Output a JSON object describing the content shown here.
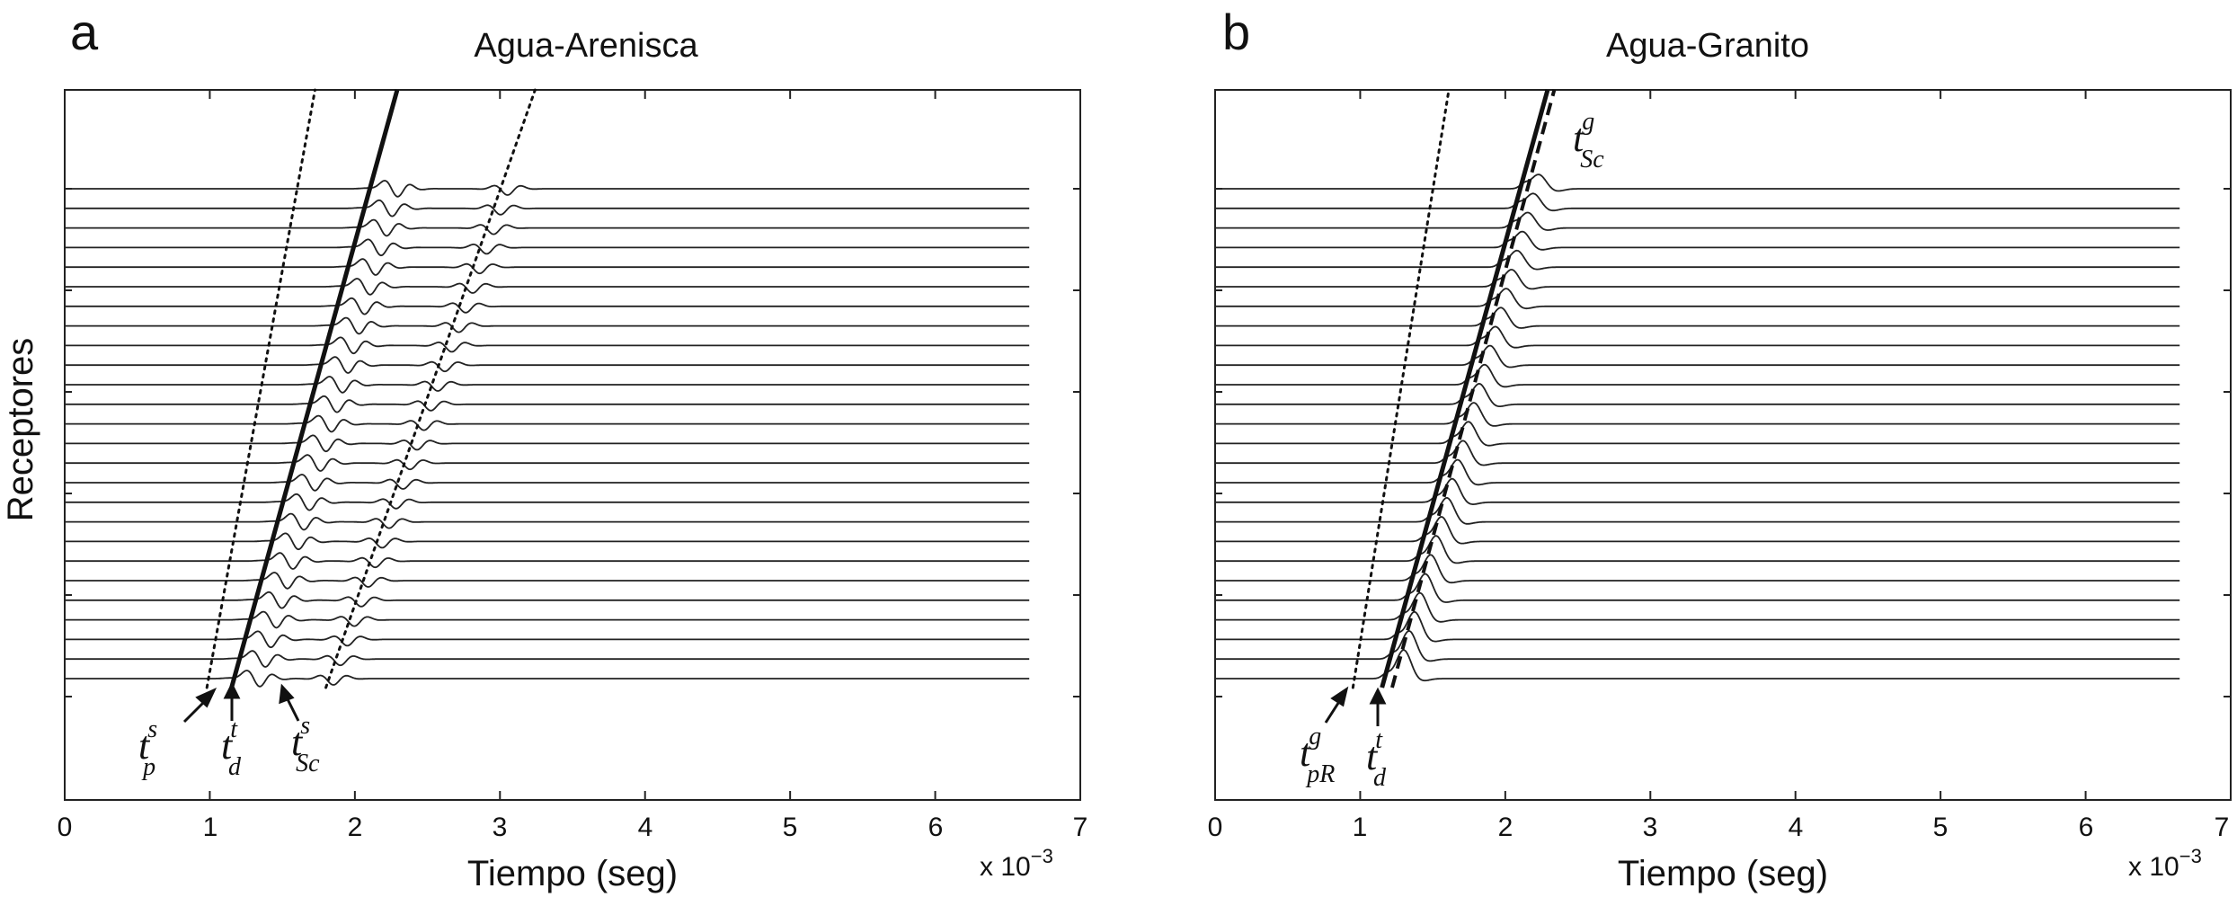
{
  "figure": {
    "ylabel": "Receptores",
    "multiplier_base": "x 10",
    "multiplier_exp": "−3"
  },
  "chart_data": [
    {
      "type": "line",
      "panel_letter": "a",
      "title": "Agua-Arenisca",
      "xlabel": "Tiempo (seg)",
      "ylabel": "Receptores",
      "x_multiplier": "x 10−3",
      "xlim": [
        0,
        7
      ],
      "x_ticks": [
        "0",
        "1",
        "2",
        "3",
        "4",
        "5",
        "6",
        "7"
      ],
      "traces": {
        "count": 26,
        "x_end": 6.65,
        "first_arrival_bottom": 0.98,
        "first_arrival_top": 2.1
      },
      "series": [
        {
          "name": "t_p^s",
          "style": "dotted",
          "x_bottom": 0.98,
          "x_top": 1.6
        },
        {
          "name": "t_d^t",
          "style": "solid",
          "x_bottom": 1.15,
          "x_top": 2.1
        },
        {
          "name": "t_Sc^s",
          "style": "dotted",
          "x_bottom": 1.8,
          "x_top": 3.0
        }
      ],
      "annotations": [
        {
          "base": "t",
          "sup": "s",
          "sub": "p"
        },
        {
          "base": "t",
          "sup": "t",
          "sub": "d"
        },
        {
          "base": "t",
          "sup": "s",
          "sub": "Sc"
        }
      ]
    },
    {
      "type": "line",
      "panel_letter": "b",
      "title": "Agua-Granito",
      "xlabel": "Tiempo (seg)",
      "ylabel": "Receptores",
      "x_multiplier": "x 10−3",
      "xlim": [
        0,
        7
      ],
      "x_ticks": [
        "0",
        "1",
        "2",
        "3",
        "4",
        "5",
        "6",
        "7"
      ],
      "traces": {
        "count": 26,
        "x_end": 6.65,
        "first_arrival_bottom": 0.95,
        "first_arrival_top": 2.1
      },
      "series": [
        {
          "name": "t_pR^g",
          "style": "dotted",
          "x_bottom": 0.95,
          "x_top": 1.5
        },
        {
          "name": "t_d^t",
          "style": "solid",
          "x_bottom": 1.15,
          "x_top": 2.1
        },
        {
          "name": "t_Sc^g",
          "style": "dashed",
          "x_bottom": 1.22,
          "x_top": 2.15
        }
      ],
      "annotations": [
        {
          "base": "t",
          "sup": "g",
          "sub": "pR"
        },
        {
          "base": "t",
          "sup": "t",
          "sub": "d"
        },
        {
          "base": "t",
          "sup": "g",
          "sub": "Sc"
        }
      ]
    }
  ]
}
